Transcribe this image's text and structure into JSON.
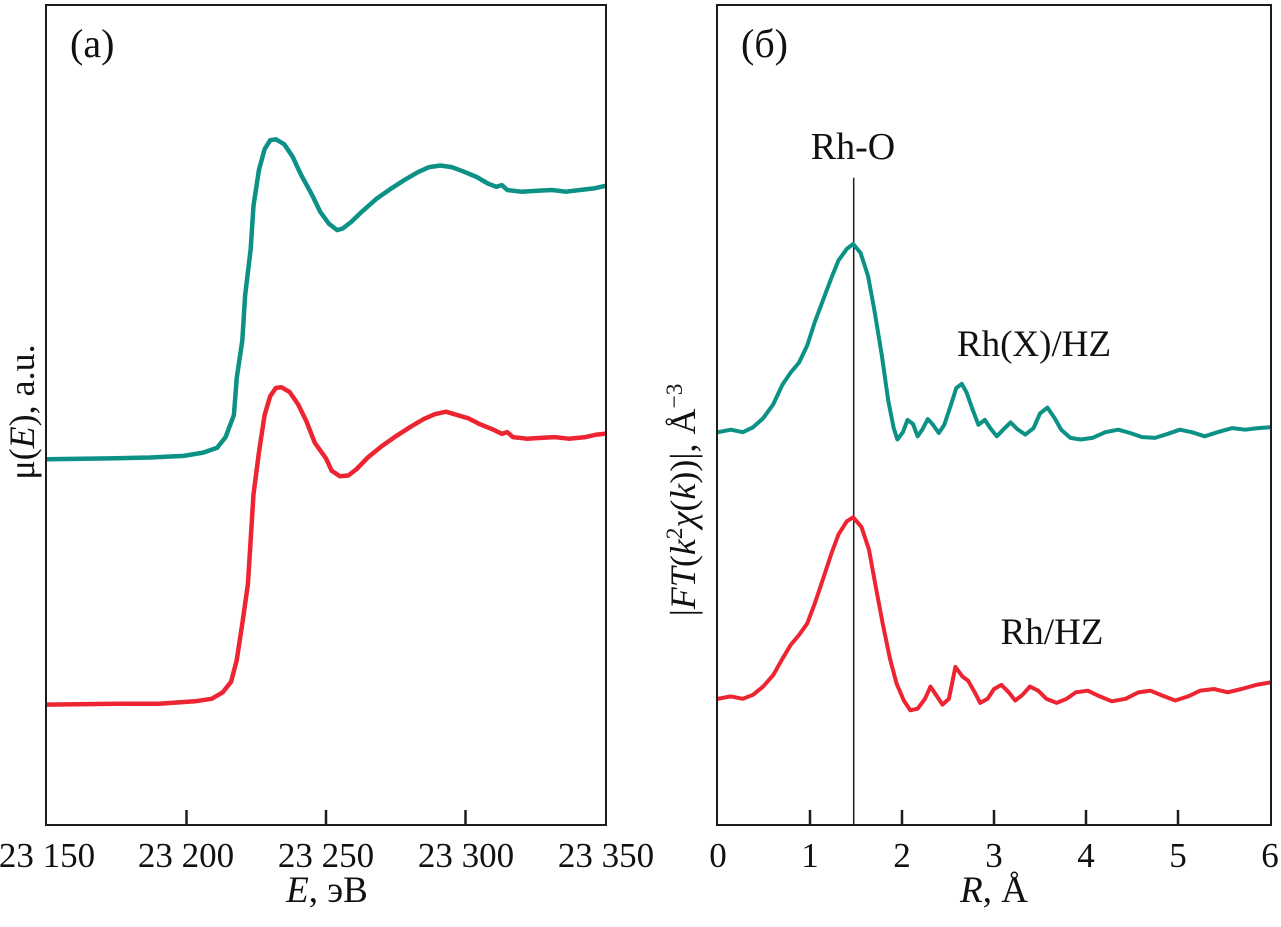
{
  "figure": {
    "colors": {
      "curve_teal": "#0c9186",
      "curve_red": "#ed2532",
      "axis": "#1c1c1c"
    }
  },
  "panel_a": {
    "tag": "(a)",
    "x_axis": {
      "title_parts": [
        {
          "t": "E",
          "i": true
        },
        {
          "t": ", эВ"
        }
      ],
      "ticks": [
        "23 150",
        "23 200",
        "23 250",
        "23 300",
        "23 350"
      ]
    },
    "y_axis": {
      "title_parts": [
        {
          "t": "μ("
        },
        {
          "t": "E",
          "i": true
        },
        {
          "t": "), a.u."
        }
      ]
    }
  },
  "panel_b": {
    "tag": "(б)",
    "x_axis": {
      "title_parts": [
        {
          "t": "R",
          "i": true
        },
        {
          "t": ", Å"
        }
      ],
      "ticks": [
        "0",
        "1",
        "2",
        "3",
        "4",
        "5",
        "6"
      ]
    },
    "y_axis": {
      "title_parts": [
        {
          "t": "|"
        },
        {
          "t": "FT",
          "i": true
        },
        {
          "t": "("
        },
        {
          "t": "k",
          "i": true
        },
        {
          "t": "2",
          "sup": true
        },
        {
          "t": "χ",
          "i": true
        },
        {
          "t": "("
        },
        {
          "t": "k",
          "i": true
        },
        {
          "t": "))|, Å"
        },
        {
          "t": "−3",
          "sup": true
        }
      ]
    },
    "annotations": {
      "peak_line_label": "Rh-O",
      "curve_top_label": "Rh(X)/HZ",
      "curve_bottom_label": "Rh/HZ"
    }
  },
  "chart_data": [
    {
      "type": "line",
      "title": "(a) Rh K-edge XANES spectra",
      "xlabel": "E, эВ",
      "ylabel": "μ(E), a.u.",
      "xlim": [
        23150,
        23350
      ],
      "x_tick_values": [
        23150,
        23200,
        23250,
        23300,
        23350
      ],
      "x_ticks_interior": [
        23200,
        23250,
        23300
      ],
      "grid": false,
      "legend_position": "none",
      "y_units": "a.u., normalized to panel height (0 = bottom axis, 1 = top)",
      "series": [
        {
          "name": "Rh(X)/HZ",
          "color": "#0c9186",
          "stroke_width": 4.5,
          "points": [
            [
              23150,
              0.446
            ],
            [
              23172,
              0.447
            ],
            [
              23187,
              0.448
            ],
            [
              23199,
              0.45
            ],
            [
              23206,
              0.454
            ],
            [
              23211,
              0.46
            ],
            [
              23214,
              0.473
            ],
            [
              23217,
              0.5
            ],
            [
              23218,
              0.545
            ],
            [
              23220,
              0.591
            ],
            [
              23221,
              0.646
            ],
            [
              23223,
              0.703
            ],
            [
              23224,
              0.756
            ],
            [
              23226,
              0.8
            ],
            [
              23228,
              0.825
            ],
            [
              23230,
              0.836
            ],
            [
              23232,
              0.837
            ],
            [
              23235,
              0.831
            ],
            [
              23238,
              0.816
            ],
            [
              23241,
              0.794
            ],
            [
              23245,
              0.769
            ],
            [
              23248,
              0.748
            ],
            [
              23251,
              0.734
            ],
            [
              23254,
              0.726
            ],
            [
              23256,
              0.728
            ],
            [
              23259,
              0.736
            ],
            [
              23263,
              0.749
            ],
            [
              23268,
              0.764
            ],
            [
              23273,
              0.776
            ],
            [
              23278,
              0.787
            ],
            [
              23283,
              0.797
            ],
            [
              23287,
              0.803
            ],
            [
              23291,
              0.805
            ],
            [
              23295,
              0.803
            ],
            [
              23299,
              0.798
            ],
            [
              23304,
              0.791
            ],
            [
              23308,
              0.783
            ],
            [
              23311,
              0.779
            ],
            [
              23313,
              0.781
            ],
            [
              23315,
              0.775
            ],
            [
              23320,
              0.773
            ],
            [
              23325,
              0.774
            ],
            [
              23331,
              0.775
            ],
            [
              23336,
              0.773
            ],
            [
              23341,
              0.775
            ],
            [
              23346,
              0.777
            ],
            [
              23350,
              0.78
            ]
          ]
        },
        {
          "name": "Rh/HZ",
          "color": "#ed2532",
          "stroke_width": 4.5,
          "points": [
            [
              23150,
              0.146
            ],
            [
              23175,
              0.147
            ],
            [
              23190,
              0.147
            ],
            [
              23203,
              0.15
            ],
            [
              23209,
              0.153
            ],
            [
              23213,
              0.161
            ],
            [
              23216,
              0.174
            ],
            [
              23218,
              0.2
            ],
            [
              23220,
              0.245
            ],
            [
              23222,
              0.293
            ],
            [
              23223,
              0.348
            ],
            [
              23224,
              0.403
            ],
            [
              23226,
              0.455
            ],
            [
              23228,
              0.5
            ],
            [
              23230,
              0.523
            ],
            [
              23232,
              0.533
            ],
            [
              23234,
              0.534
            ],
            [
              23237,
              0.528
            ],
            [
              23240,
              0.513
            ],
            [
              23243,
              0.492
            ],
            [
              23246,
              0.466
            ],
            [
              23250,
              0.447
            ],
            [
              23252,
              0.432
            ],
            [
              23255,
              0.425
            ],
            [
              23258,
              0.426
            ],
            [
              23261,
              0.434
            ],
            [
              23265,
              0.448
            ],
            [
              23270,
              0.462
            ],
            [
              23275,
              0.474
            ],
            [
              23280,
              0.485
            ],
            [
              23285,
              0.495
            ],
            [
              23289,
              0.501
            ],
            [
              23293,
              0.504
            ],
            [
              23296,
              0.501
            ],
            [
              23301,
              0.496
            ],
            [
              23305,
              0.489
            ],
            [
              23310,
              0.482
            ],
            [
              23313,
              0.477
            ],
            [
              23315,
              0.479
            ],
            [
              23317,
              0.473
            ],
            [
              23322,
              0.471
            ],
            [
              23327,
              0.472
            ],
            [
              23332,
              0.473
            ],
            [
              23337,
              0.471
            ],
            [
              23343,
              0.473
            ],
            [
              23347,
              0.476
            ],
            [
              23350,
              0.477
            ]
          ]
        }
      ]
    },
    {
      "type": "line",
      "title": "(б) Fourier transforms of EXAFS",
      "xlabel": "R, Å",
      "ylabel": "|FT(k²χ(k))|, Å⁻³",
      "xlim": [
        0,
        6
      ],
      "x_tick_values": [
        0,
        1,
        2,
        3,
        4,
        5,
        6
      ],
      "x_ticks_interior": [
        1,
        2,
        3,
        4,
        5
      ],
      "grid": false,
      "legend_position": "none",
      "y_units": "a.u., normalized to panel height (0 = bottom axis, 1 = top)",
      "vline": {
        "x": 1.475,
        "y_top_norm": 0.79,
        "label": "Rh-O",
        "color": "#1c1c1c",
        "stroke_width": 1.5
      },
      "series": [
        {
          "name": "Rh(X)/HZ",
          "color": "#0c9186",
          "stroke_width": 4,
          "points": [
            [
              0,
              0.479
            ],
            [
              0.14,
              0.482
            ],
            [
              0.27,
              0.479
            ],
            [
              0.38,
              0.485
            ],
            [
              0.49,
              0.496
            ],
            [
              0.6,
              0.513
            ],
            [
              0.7,
              0.537
            ],
            [
              0.79,
              0.552
            ],
            [
              0.88,
              0.564
            ],
            [
              0.97,
              0.585
            ],
            [
              1.05,
              0.613
            ],
            [
              1.14,
              0.64
            ],
            [
              1.23,
              0.667
            ],
            [
              1.31,
              0.689
            ],
            [
              1.4,
              0.703
            ],
            [
              1.47,
              0.709
            ],
            [
              1.55,
              0.698
            ],
            [
              1.63,
              0.67
            ],
            [
              1.7,
              0.628
            ],
            [
              1.78,
              0.573
            ],
            [
              1.85,
              0.518
            ],
            [
              1.91,
              0.484
            ],
            [
              1.95,
              0.47
            ],
            [
              2.01,
              0.479
            ],
            [
              2.06,
              0.494
            ],
            [
              2.12,
              0.489
            ],
            [
              2.17,
              0.474
            ],
            [
              2.22,
              0.482
            ],
            [
              2.28,
              0.495
            ],
            [
              2.33,
              0.489
            ],
            [
              2.4,
              0.478
            ],
            [
              2.46,
              0.488
            ],
            [
              2.53,
              0.512
            ],
            [
              2.59,
              0.533
            ],
            [
              2.65,
              0.538
            ],
            [
              2.7,
              0.528
            ],
            [
              2.77,
              0.506
            ],
            [
              2.83,
              0.488
            ],
            [
              2.9,
              0.494
            ],
            [
              2.96,
              0.484
            ],
            [
              3.03,
              0.474
            ],
            [
              3.1,
              0.482
            ],
            [
              3.18,
              0.491
            ],
            [
              3.25,
              0.483
            ],
            [
              3.34,
              0.476
            ],
            [
              3.43,
              0.484
            ],
            [
              3.5,
              0.502
            ],
            [
              3.58,
              0.509
            ],
            [
              3.66,
              0.496
            ],
            [
              3.73,
              0.482
            ],
            [
              3.83,
              0.472
            ],
            [
              3.94,
              0.47
            ],
            [
              4.07,
              0.472
            ],
            [
              4.21,
              0.479
            ],
            [
              4.35,
              0.482
            ],
            [
              4.48,
              0.478
            ],
            [
              4.61,
              0.473
            ],
            [
              4.75,
              0.472
            ],
            [
              4.89,
              0.477
            ],
            [
              5.02,
              0.482
            ],
            [
              5.15,
              0.479
            ],
            [
              5.29,
              0.474
            ],
            [
              5.43,
              0.479
            ],
            [
              5.59,
              0.484
            ],
            [
              5.73,
              0.482
            ],
            [
              5.87,
              0.484
            ],
            [
              6,
              0.485
            ]
          ]
        },
        {
          "name": "Rh/HZ",
          "color": "#ed2532",
          "stroke_width": 4,
          "points": [
            [
              0,
              0.153
            ],
            [
              0.14,
              0.156
            ],
            [
              0.27,
              0.153
            ],
            [
              0.38,
              0.158
            ],
            [
              0.49,
              0.168
            ],
            [
              0.6,
              0.182
            ],
            [
              0.7,
              0.202
            ],
            [
              0.79,
              0.219
            ],
            [
              0.88,
              0.231
            ],
            [
              0.97,
              0.245
            ],
            [
              1.05,
              0.269
            ],
            [
              1.14,
              0.299
            ],
            [
              1.23,
              0.33
            ],
            [
              1.31,
              0.354
            ],
            [
              1.4,
              0.37
            ],
            [
              1.47,
              0.375
            ],
            [
              1.56,
              0.363
            ],
            [
              1.64,
              0.336
            ],
            [
              1.71,
              0.293
            ],
            [
              1.79,
              0.245
            ],
            [
              1.87,
              0.202
            ],
            [
              1.94,
              0.172
            ],
            [
              2.02,
              0.151
            ],
            [
              2.09,
              0.139
            ],
            [
              2.17,
              0.141
            ],
            [
              2.25,
              0.153
            ],
            [
              2.31,
              0.168
            ],
            [
              2.38,
              0.156
            ],
            [
              2.44,
              0.146
            ],
            [
              2.51,
              0.153
            ],
            [
              2.58,
              0.192
            ],
            [
              2.66,
              0.18
            ],
            [
              2.72,
              0.175
            ],
            [
              2.79,
              0.161
            ],
            [
              2.85,
              0.148
            ],
            [
              2.93,
              0.153
            ],
            [
              3,
              0.165
            ],
            [
              3.08,
              0.17
            ],
            [
              3.16,
              0.161
            ],
            [
              3.23,
              0.151
            ],
            [
              3.31,
              0.158
            ],
            [
              3.39,
              0.168
            ],
            [
              3.48,
              0.163
            ],
            [
              3.57,
              0.153
            ],
            [
              3.68,
              0.148
            ],
            [
              3.79,
              0.153
            ],
            [
              3.89,
              0.161
            ],
            [
              4.02,
              0.163
            ],
            [
              4.15,
              0.156
            ],
            [
              4.28,
              0.15
            ],
            [
              4.43,
              0.153
            ],
            [
              4.57,
              0.161
            ],
            [
              4.7,
              0.163
            ],
            [
              4.83,
              0.157
            ],
            [
              4.97,
              0.151
            ],
            [
              5.11,
              0.156
            ],
            [
              5.24,
              0.163
            ],
            [
              5.39,
              0.165
            ],
            [
              5.54,
              0.161
            ],
            [
              5.69,
              0.165
            ],
            [
              5.85,
              0.17
            ],
            [
              6,
              0.173
            ]
          ]
        }
      ]
    }
  ]
}
